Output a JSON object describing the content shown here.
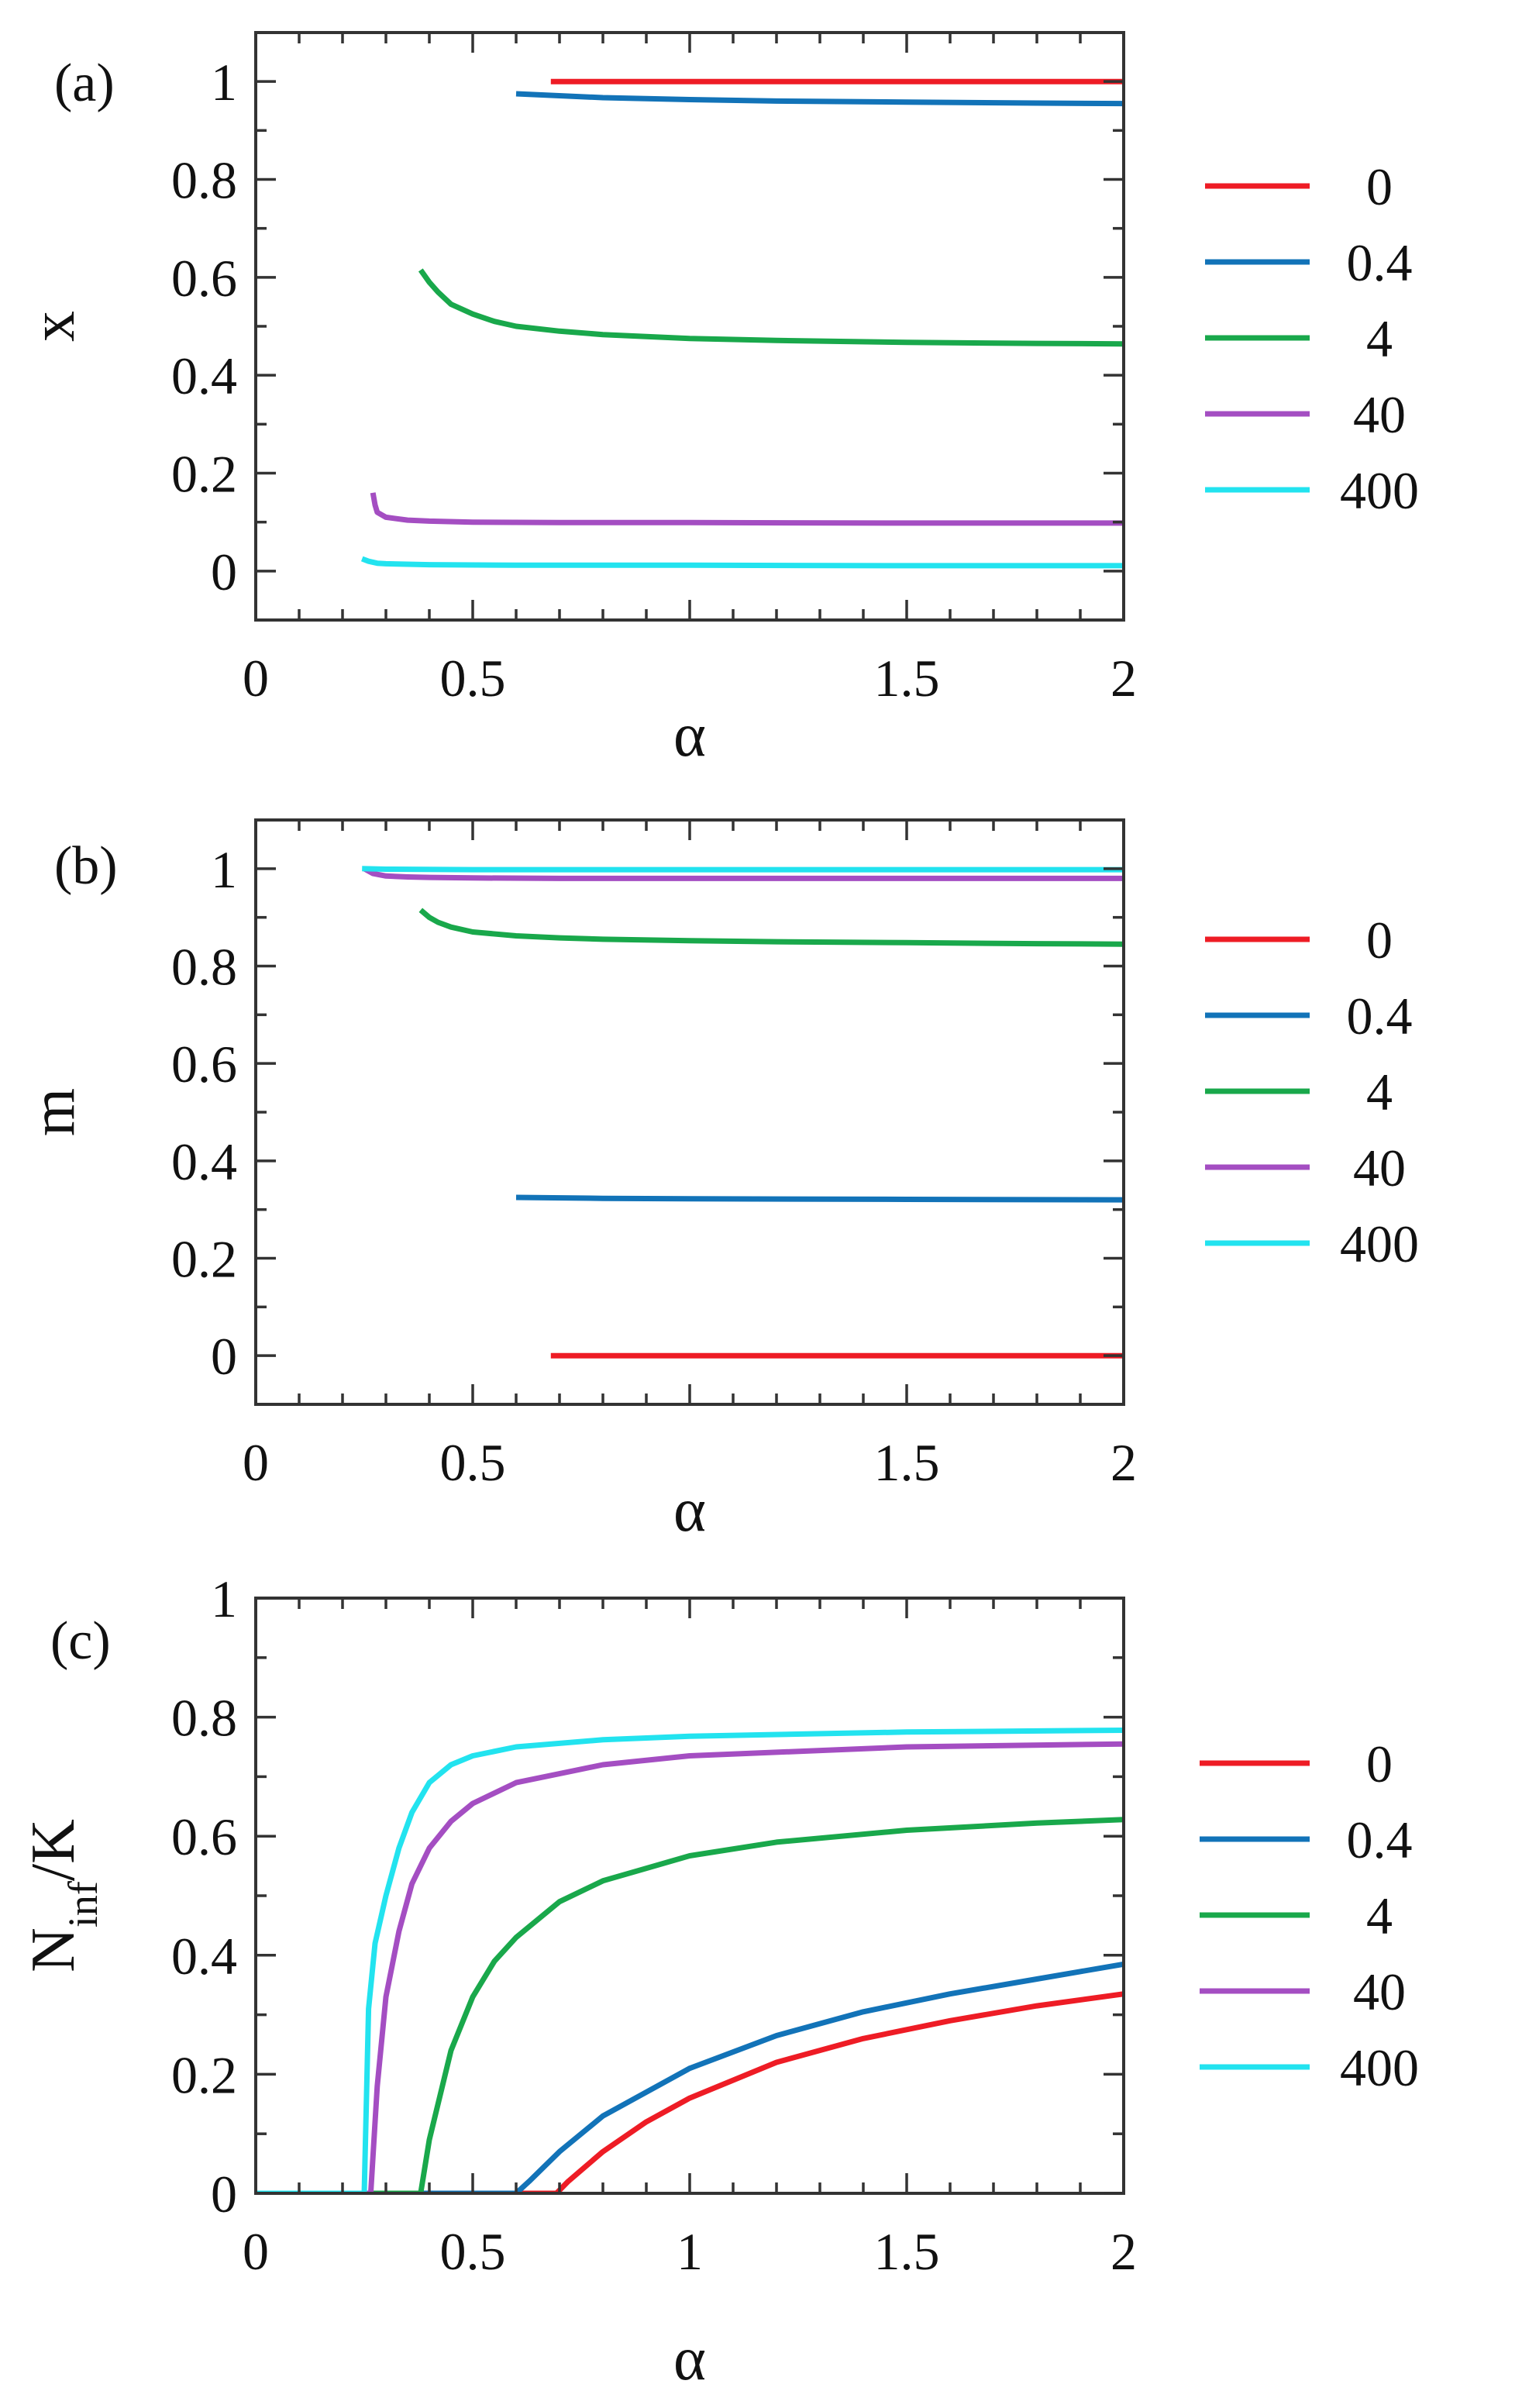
{
  "colors": {
    "0": "#ee1c25",
    "0.4": "#1273b8",
    "4": "#19a84b",
    "40": "#a44ec2",
    "400": "#22e3ef"
  },
  "chart_data": [
    {
      "type": "line",
      "panel_label": "(a)",
      "xlabel": "α",
      "ylabel": "x",
      "xlim": [
        0,
        2
      ],
      "ylim": [
        -0.1,
        1.1
      ],
      "x_ticks": [
        0,
        0.5,
        1,
        1.5,
        2
      ],
      "x_tick_labels": [
        "0",
        "0.5",
        "",
        "1.5",
        "2"
      ],
      "y_ticks": [
        0,
        0.2,
        0.4,
        0.6,
        0.8,
        1
      ],
      "y_tick_labels": [
        "0",
        "0.2",
        "0.4",
        "0.6",
        "0.8",
        "1"
      ],
      "legend": [
        "0",
        "0.4",
        "4",
        "40",
        "400"
      ],
      "series": [
        {
          "name": "0",
          "x": [
            0.68,
            2.0
          ],
          "y": [
            1.0,
            1.0
          ]
        },
        {
          "name": "0.4",
          "x": [
            0.6,
            0.8,
            1.0,
            1.2,
            1.5,
            1.8,
            2.0
          ],
          "y": [
            0.975,
            0.967,
            0.963,
            0.96,
            0.958,
            0.956,
            0.955
          ]
        },
        {
          "name": "4",
          "x": [
            0.38,
            0.4,
            0.42,
            0.45,
            0.5,
            0.55,
            0.6,
            0.7,
            0.8,
            1.0,
            1.2,
            1.5,
            1.8,
            2.0
          ],
          "y": [
            0.615,
            0.59,
            0.57,
            0.545,
            0.525,
            0.51,
            0.5,
            0.49,
            0.483,
            0.475,
            0.471,
            0.467,
            0.465,
            0.464
          ]
        },
        {
          "name": "40",
          "x": [
            0.27,
            0.275,
            0.28,
            0.3,
            0.35,
            0.4,
            0.5,
            0.7,
            1.0,
            1.5,
            2.0
          ],
          "y": [
            0.16,
            0.135,
            0.12,
            0.11,
            0.104,
            0.102,
            0.1,
            0.099,
            0.099,
            0.098,
            0.098
          ]
        },
        {
          "name": "400",
          "x": [
            0.245,
            0.26,
            0.28,
            0.3,
            0.4,
            0.6,
            1.0,
            1.5,
            2.0
          ],
          "y": [
            0.025,
            0.02,
            0.016,
            0.015,
            0.013,
            0.012,
            0.012,
            0.011,
            0.011
          ]
        }
      ]
    },
    {
      "type": "line",
      "panel_label": "(b)",
      "xlabel": "α",
      "ylabel": "m",
      "xlim": [
        0,
        2
      ],
      "ylim": [
        -0.1,
        1.1
      ],
      "x_ticks": [
        0,
        0.5,
        1,
        1.5,
        2
      ],
      "x_tick_labels": [
        "0",
        "0.5",
        "",
        "1.5",
        "2"
      ],
      "y_ticks": [
        0,
        0.2,
        0.4,
        0.6,
        0.8,
        1
      ],
      "y_tick_labels": [
        "0",
        "0.2",
        "0.4",
        "0.6",
        "0.8",
        "1"
      ],
      "legend": [
        "0",
        "0.4",
        "4",
        "40",
        "400"
      ],
      "series": [
        {
          "name": "0",
          "x": [
            0.68,
            2.0
          ],
          "y": [
            0.0,
            0.0
          ]
        },
        {
          "name": "0.4",
          "x": [
            0.6,
            0.8,
            1.0,
            1.5,
            2.0
          ],
          "y": [
            0.325,
            0.323,
            0.322,
            0.321,
            0.32
          ]
        },
        {
          "name": "4",
          "x": [
            0.38,
            0.4,
            0.42,
            0.45,
            0.5,
            0.6,
            0.7,
            0.8,
            1.0,
            1.2,
            1.5,
            1.8,
            2.0
          ],
          "y": [
            0.915,
            0.9,
            0.89,
            0.88,
            0.87,
            0.862,
            0.858,
            0.855,
            0.852,
            0.85,
            0.848,
            0.846,
            0.845
          ]
        },
        {
          "name": "40",
          "x": [
            0.25,
            0.27,
            0.3,
            0.35,
            0.4,
            0.5,
            0.7,
            1.0,
            1.5,
            2.0
          ],
          "y": [
            1.0,
            0.99,
            0.985,
            0.983,
            0.982,
            0.981,
            0.98,
            0.98,
            0.98,
            0.98
          ]
        },
        {
          "name": "400",
          "x": [
            0.245,
            0.3,
            0.5,
            1.0,
            1.5,
            2.0
          ],
          "y": [
            1.0,
            0.999,
            0.998,
            0.998,
            0.998,
            0.998
          ]
        }
      ]
    },
    {
      "type": "line",
      "panel_label": "(c)",
      "xlabel": "α",
      "ylabel": "N",
      "ylabel_sub": "inf",
      "ylabel_suffix": "/K",
      "xlim": [
        0,
        2
      ],
      "ylim": [
        0,
        1
      ],
      "x_ticks": [
        0,
        0.5,
        1,
        1.5,
        2
      ],
      "x_tick_labels": [
        "0",
        "0.5",
        "1",
        "1.5",
        "2"
      ],
      "y_ticks": [
        0,
        0.2,
        0.4,
        0.6,
        0.8,
        1
      ],
      "y_tick_labels": [
        "0",
        "0.2",
        "0.4",
        "0.6",
        "0.8",
        "1"
      ],
      "legend": [
        "0",
        "0.4",
        "4",
        "40",
        "400"
      ],
      "series": [
        {
          "name": "0",
          "x": [
            0,
            0.693,
            0.72,
            0.8,
            0.9,
            1.0,
            1.2,
            1.4,
            1.6,
            1.8,
            2.0
          ],
          "y": [
            0,
            0,
            0.02,
            0.07,
            0.12,
            0.16,
            0.22,
            0.26,
            0.29,
            0.315,
            0.335
          ]
        },
        {
          "name": "0.4",
          "x": [
            0,
            0.6,
            0.63,
            0.7,
            0.8,
            0.9,
            1.0,
            1.2,
            1.4,
            1.6,
            1.8,
            2.0
          ],
          "y": [
            0,
            0,
            0.02,
            0.07,
            0.13,
            0.17,
            0.21,
            0.265,
            0.305,
            0.335,
            0.36,
            0.385
          ]
        },
        {
          "name": "4",
          "x": [
            0,
            0.38,
            0.4,
            0.45,
            0.5,
            0.55,
            0.6,
            0.7,
            0.8,
            1.0,
            1.2,
            1.5,
            1.8,
            2.0
          ],
          "y": [
            0,
            0,
            0.09,
            0.24,
            0.33,
            0.39,
            0.43,
            0.49,
            0.525,
            0.567,
            0.59,
            0.61,
            0.622,
            0.628
          ]
        },
        {
          "name": "40",
          "x": [
            0,
            0.265,
            0.28,
            0.3,
            0.33,
            0.36,
            0.4,
            0.45,
            0.5,
            0.6,
            0.8,
            1.0,
            1.5,
            2.0
          ],
          "y": [
            0,
            0,
            0.18,
            0.33,
            0.44,
            0.52,
            0.58,
            0.625,
            0.655,
            0.69,
            0.72,
            0.735,
            0.75,
            0.755
          ]
        },
        {
          "name": "400",
          "x": [
            0,
            0.25,
            0.26,
            0.275,
            0.3,
            0.33,
            0.36,
            0.4,
            0.45,
            0.5,
            0.6,
            0.8,
            1.0,
            1.5,
            2.0
          ],
          "y": [
            0,
            0,
            0.31,
            0.42,
            0.5,
            0.58,
            0.64,
            0.69,
            0.72,
            0.735,
            0.75,
            0.762,
            0.768,
            0.775,
            0.778
          ]
        }
      ]
    }
  ]
}
